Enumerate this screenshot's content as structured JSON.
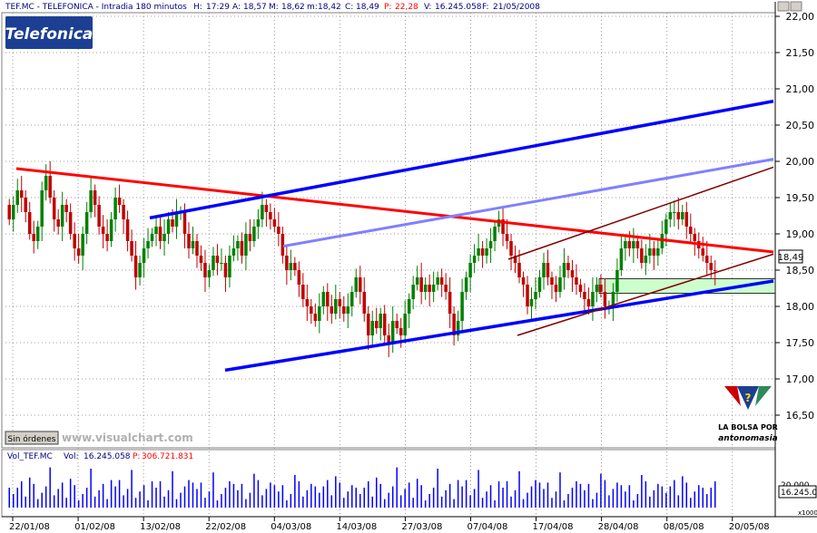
{
  "header": {
    "symbol": "TEF.MC - TELEFONICA - Intradia 180 minutos",
    "h_label": "H:",
    "h_value": "17:29",
    "a_label": "A:",
    "a_value": "18,57",
    "m_label": "M:",
    "m_value": "18,62",
    "min_label": "m:",
    "min_value": "18,42",
    "c_label": "C:",
    "c_value": "18,49",
    "p_label": "P:",
    "p_value": "22,28",
    "v_label": "V:",
    "v_value": "16.245.058",
    "f_label": "F:",
    "f_value": "21/05/2008"
  },
  "logo": {
    "text": "Telefonica"
  },
  "sin_ordenes": "Sin órdenes",
  "watermark": "www.visualchart.com",
  "brand": {
    "line1": "LA BOLSA POR",
    "line2": "antonomasia"
  },
  "volume_header": {
    "label": "Vol_TEF.MC",
    "vol_label": "Vol:",
    "vol_value": "16.245.058",
    "p_label": "P:",
    "p_value": "306.721.831"
  },
  "colors": {
    "background": "#ffffff",
    "grid": "#808080",
    "bull_candle": "#008000",
    "bear_candle": "#c00000",
    "resistance_line": "#ff0000",
    "support_channel": "#0000ff",
    "mid_channel": "#8080ff",
    "short_channel": "#800000",
    "zone_fill": "#ccffcc",
    "volume_bar": "#0000ff",
    "axis_bg": "#ffffff"
  },
  "chart_data": {
    "type": "candlestick",
    "ylim": [
      16.05,
      22.05
    ],
    "y_ticks": [
      "22,00",
      "21,50",
      "21,00",
      "20,50",
      "20,00",
      "19,50",
      "19,00",
      "18,50",
      "18,00",
      "17,50",
      "17,00",
      "16,50"
    ],
    "y_tick_values": [
      22.0,
      21.5,
      21.0,
      20.5,
      20.0,
      19.5,
      19.0,
      18.5,
      18.0,
      17.5,
      17.0,
      16.5
    ],
    "last_price_label": "18,49",
    "last_price": 18.49,
    "x_ticks": [
      "22/01/08",
      "01/02/08",
      "13/02/08",
      "22/02/08",
      "04/03/08",
      "14/03/08",
      "27/03/08",
      "07/04/08",
      "17/04/08",
      "28/04/08",
      "08/05/08",
      "20/05/08"
    ],
    "volume_ticks": [
      "20.000",
      "16.245.05"
    ],
    "volume_unit": "x1000",
    "closes": [
      19.2,
      19.4,
      19.6,
      19.5,
      19.3,
      19.0,
      18.9,
      19.1,
      19.6,
      19.8,
      19.5,
      19.2,
      19.1,
      19.4,
      19.3,
      19.0,
      18.8,
      18.7,
      19.0,
      19.3,
      19.6,
      19.4,
      19.1,
      19.0,
      18.9,
      19.2,
      19.5,
      19.4,
      19.2,
      18.9,
      18.7,
      18.4,
      18.6,
      18.8,
      18.9,
      19.0,
      19.1,
      18.9,
      19.0,
      19.2,
      19.1,
      19.3,
      19.3,
      19.0,
      18.8,
      18.9,
      18.7,
      18.6,
      18.4,
      18.5,
      18.7,
      18.6,
      18.6,
      18.4,
      18.7,
      18.8,
      18.9,
      18.7,
      19.0,
      18.9,
      19.1,
      19.2,
      19.4,
      19.3,
      19.2,
      19.1,
      19.0,
      18.7,
      18.5,
      18.6,
      18.5,
      18.3,
      18.1,
      18.0,
      17.9,
      17.8,
      18.0,
      18.2,
      18.0,
      17.9,
      18.1,
      18.0,
      17.9,
      18.0,
      18.2,
      18.4,
      18.2,
      17.9,
      17.6,
      17.8,
      17.7,
      17.9,
      17.6,
      17.5,
      17.8,
      17.7,
      17.6,
      17.9,
      18.1,
      18.3,
      18.4,
      18.2,
      18.3,
      18.2,
      18.3,
      18.4,
      18.3,
      18.2,
      17.9,
      17.6,
      17.8,
      18.2,
      18.4,
      18.6,
      18.7,
      18.8,
      18.7,
      18.8,
      18.9,
      19.1,
      19.2,
      19.0,
      18.9,
      18.7,
      18.6,
      18.4,
      18.3,
      18.0,
      18.1,
      18.2,
      18.4,
      18.6,
      18.4,
      18.3,
      18.2,
      18.4,
      18.6,
      18.5,
      18.4,
      18.3,
      18.2,
      18.1,
      18.0,
      18.2,
      18.3,
      18.2,
      18.0,
      18.0,
      18.2,
      18.5,
      18.8,
      18.9,
      18.8,
      18.9,
      18.8,
      18.6,
      18.7,
      18.8,
      18.7,
      18.8,
      19.0,
      19.2,
      19.3,
      19.3,
      19.2,
      19.3,
      19.1,
      19.0,
      18.9,
      18.8,
      18.7,
      18.6,
      18.5,
      18.49
    ]
  }
}
